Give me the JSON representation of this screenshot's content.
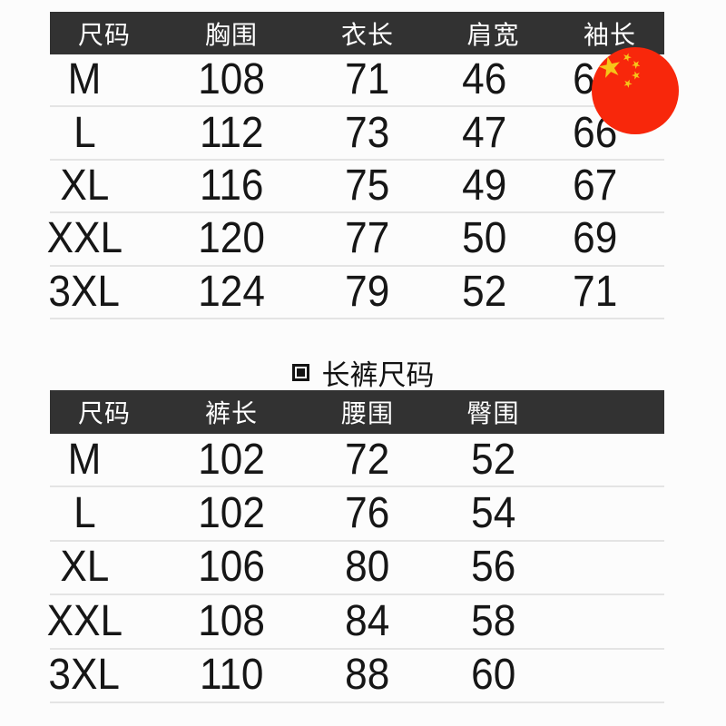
{
  "chart_data": [
    {
      "type": "table",
      "title": "",
      "columns": [
        "尺码",
        "胸围",
        "衣长",
        "肩宽",
        "袖长"
      ],
      "rows": [
        [
          "M",
          "108",
          "71",
          "46",
          "64"
        ],
        [
          "L",
          "112",
          "73",
          "47",
          "66"
        ],
        [
          "XL",
          "116",
          "75",
          "49",
          "67"
        ],
        [
          "XXL",
          "120",
          "77",
          "50",
          "69"
        ],
        [
          "3XL",
          "124",
          "79",
          "52",
          "71"
        ]
      ]
    },
    {
      "type": "table",
      "title": "长裤尺码",
      "columns": [
        "尺码",
        "裤长",
        "腰围",
        "臀围"
      ],
      "rows": [
        [
          "M",
          "102",
          "72",
          "52"
        ],
        [
          "L",
          "102",
          "76",
          "54"
        ],
        [
          "XL",
          "106",
          "80",
          "56"
        ],
        [
          "XXL",
          "108",
          "84",
          "58"
        ],
        [
          "3XL",
          "110",
          "88",
          "60"
        ]
      ]
    }
  ],
  "badge": {
    "type": "china-flag",
    "star_glyph": "★"
  },
  "colors": {
    "background": "#fcfcfc",
    "header_bg": "#323232",
    "header_text": "#ffffff",
    "body_text": "#161616",
    "divider": "#e4e4e4",
    "flag_red": "#f8270b",
    "star_gold": "#f6c519"
  }
}
